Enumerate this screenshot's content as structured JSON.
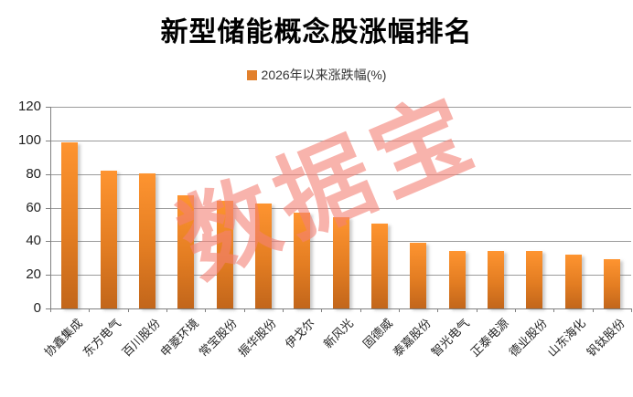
{
  "title": "新型储能概念股涨幅排名",
  "legend": {
    "label": "2026年以来涨跌幅(%)"
  },
  "watermark": "数据宝",
  "chart_data": {
    "type": "bar",
    "title": "新型储能概念股涨幅排名",
    "series_name": "2026年以来涨跌幅(%)",
    "categories": [
      "协鑫集成",
      "东方电气",
      "百川股份",
      "申菱环境",
      "常宝股份",
      "振华股份",
      "伊戈尔",
      "新风光",
      "固德威",
      "泰嘉股份",
      "智光电气",
      "正泰电源",
      "德业股份",
      "山东海化",
      "钒钛股份"
    ],
    "values": [
      98.6,
      82.2,
      80.5,
      67.4,
      64.0,
      62.5,
      57.0,
      54.5,
      50.6,
      39.0,
      34.3,
      34.3,
      34.3,
      32.3,
      29.5
    ],
    "xlabel": "",
    "ylabel": "",
    "ylim": [
      0,
      120
    ],
    "yticks": [
      0,
      20,
      40,
      60,
      80,
      100,
      120
    ],
    "grid": true,
    "legend_position": "top",
    "x_label_rotation_deg": -45
  },
  "colors": {
    "bar_gradient_top": "#FE9430",
    "bar_gradient_mid": "#E37D22",
    "bar_gradient_bottom": "#C2661B",
    "legend_swatch": "#E2802C",
    "gridline": "#9b9b9b",
    "axis": "#808080",
    "watermark": "rgba(243,128,117,0.6)",
    "background": "#ffffff"
  }
}
